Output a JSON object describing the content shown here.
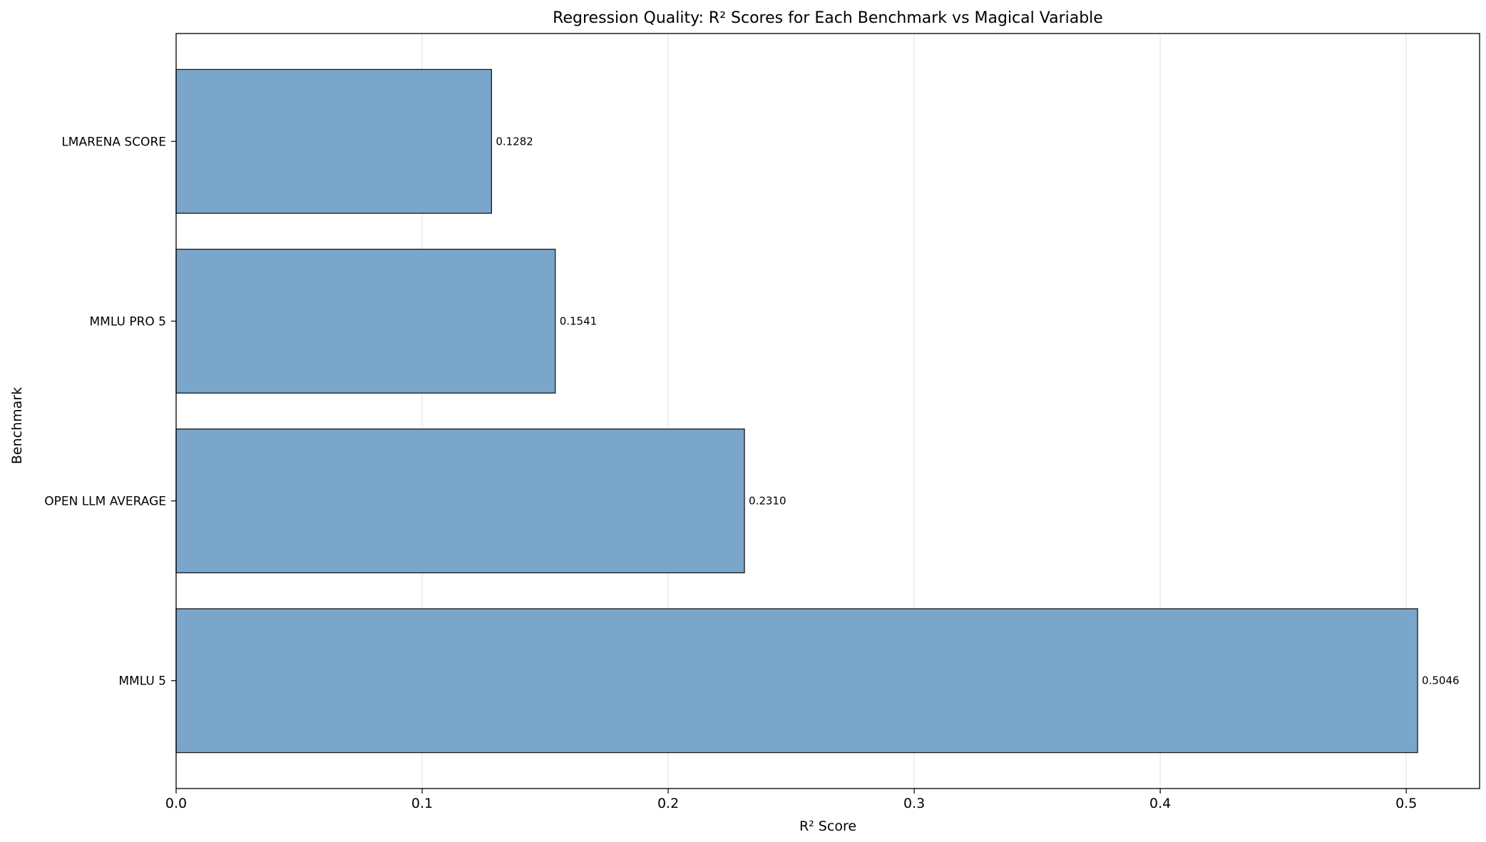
{
  "chart_data": {
    "type": "bar",
    "orientation": "horizontal",
    "title": "Regression Quality: R² Scores for Each Benchmark vs Magical Variable",
    "xlabel": "R² Score",
    "ylabel": "Benchmark",
    "categories": [
      "LMARENA SCORE",
      "MMLU PRO 5",
      "OPEN LLM AVERAGE",
      "MMLU 5"
    ],
    "values": [
      0.1282,
      0.1541,
      0.231,
      0.5046
    ],
    "value_labels": [
      "0.1282",
      "0.1541",
      "0.2310",
      "0.5046"
    ],
    "xlim": [
      0,
      0.5298
    ],
    "xticks": [
      0.0,
      0.1,
      0.2,
      0.3,
      0.4,
      0.5
    ],
    "xtick_labels": [
      "0.0",
      "0.1",
      "0.2",
      "0.3",
      "0.4",
      "0.5"
    ],
    "grid": "x-axis vertical lines",
    "bar_color": "#7ba6cb",
    "bar_edge_color": "#1a1a1a",
    "grid_color": "#e6e6e6"
  }
}
